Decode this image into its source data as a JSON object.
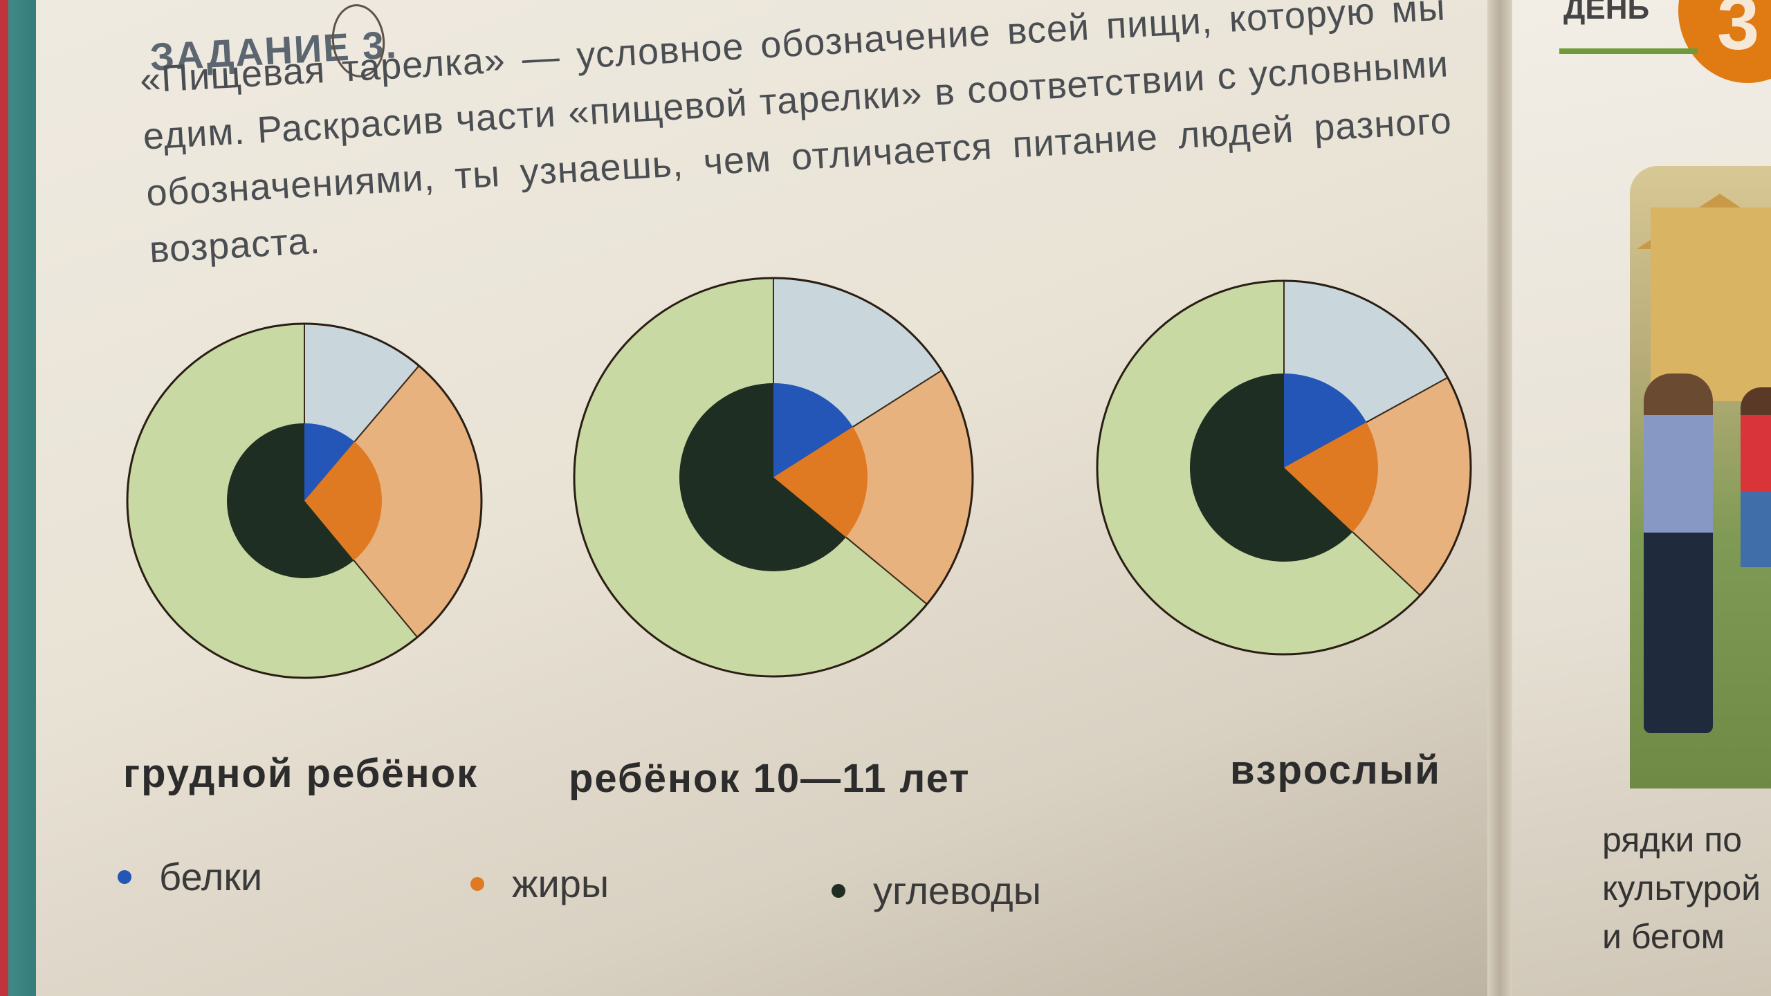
{
  "task": {
    "number_label": "ЗАДАНИЕ 3.",
    "text": "«Пищевая тарелка» — условное обозначение всей пищи, которую мы едим. Раскрасив части «пищевой тарелки» в соответствии с условными обозначениями, ты узнаешь, чем отличается питание людей разного возраста."
  },
  "colors": {
    "protein": "#2456b8",
    "fat": "#e07a22",
    "carbs": "#1f2e22",
    "protein_light": "#c9d7dc",
    "fat_light": "#e8b27e",
    "carbs_light": "#c8d9a4"
  },
  "chart_data": [
    {
      "type": "pie",
      "title": "грудной ребёнок",
      "outer": [
        {
          "category": "белки",
          "share": 0.112
        },
        {
          "category": "жиры",
          "share": 0.278
        },
        {
          "category": "углеводы",
          "share": 0.61
        }
      ],
      "inner": [
        {
          "category": "белки",
          "share": 0.112
        },
        {
          "category": "жиры",
          "share": 0.278
        },
        {
          "category": "углеводы",
          "share": 0.61
        }
      ]
    },
    {
      "type": "pie",
      "title": "ребёнок 10—11 лет",
      "outer": [
        {
          "category": "белки",
          "share": 0.16
        },
        {
          "category": "жиры",
          "share": 0.2
        },
        {
          "category": "углеводы",
          "share": 0.64
        }
      ],
      "inner": [
        {
          "category": "белки",
          "share": 0.16
        },
        {
          "category": "жиры",
          "share": 0.2
        },
        {
          "category": "углеводы",
          "share": 0.64
        }
      ]
    },
    {
      "type": "pie",
      "title": "взрослый",
      "outer": [
        {
          "category": "белки",
          "share": 0.17
        },
        {
          "category": "жиры",
          "share": 0.2
        },
        {
          "category": "углеводы",
          "share": 0.63
        }
      ],
      "inner": [
        {
          "category": "белки",
          "share": 0.17
        },
        {
          "category": "жиры",
          "share": 0.2
        },
        {
          "category": "углеводы",
          "share": 0.63
        }
      ]
    }
  ],
  "legend": [
    {
      "label": "белки",
      "color": "#2456b8"
    },
    {
      "label": "жиры",
      "color": "#e07a22"
    },
    {
      "label": "углеводы",
      "color": "#1f2e22"
    }
  ],
  "right_page": {
    "header": "ДЕНЬ",
    "badge": "3",
    "lines": [
      "рядки по",
      "культурой",
      "и бегом"
    ]
  }
}
